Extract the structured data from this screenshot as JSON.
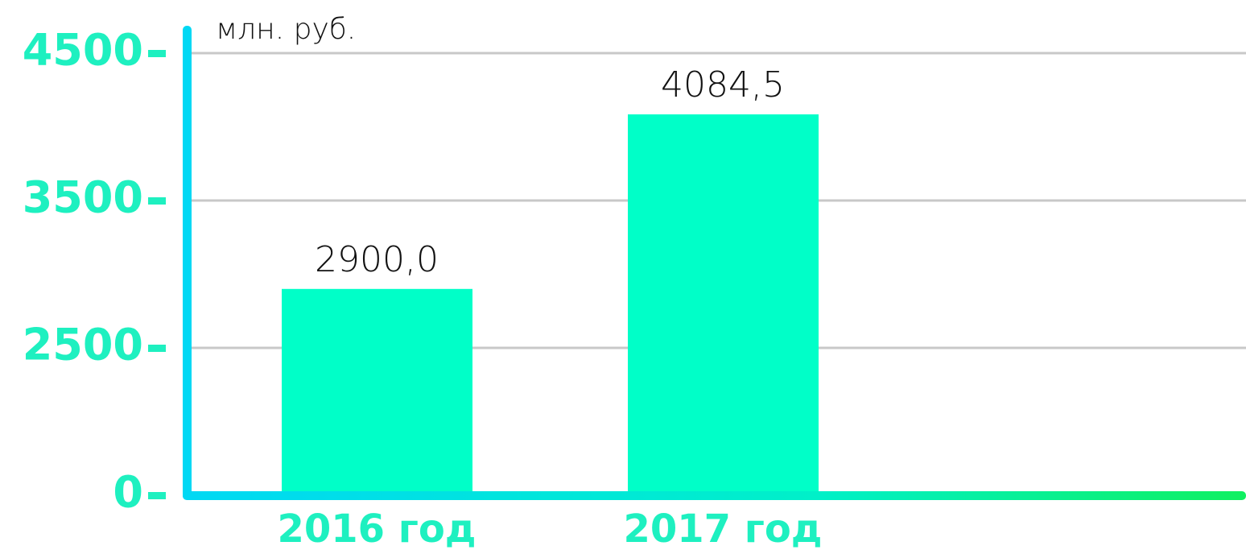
{
  "chart_data": {
    "type": "bar",
    "y_label": "млн. руб.",
    "categories": [
      "2016 год",
      "2017 год"
    ],
    "values": [
      2900,
      4084.5
    ],
    "value_labels": [
      "2900,0",
      "4084,5"
    ],
    "color": "#00ffc8",
    "ylim": [
      0,
      4500
    ],
    "yticks": [
      0,
      2500,
      3500,
      4500
    ],
    "grid": true
  }
}
